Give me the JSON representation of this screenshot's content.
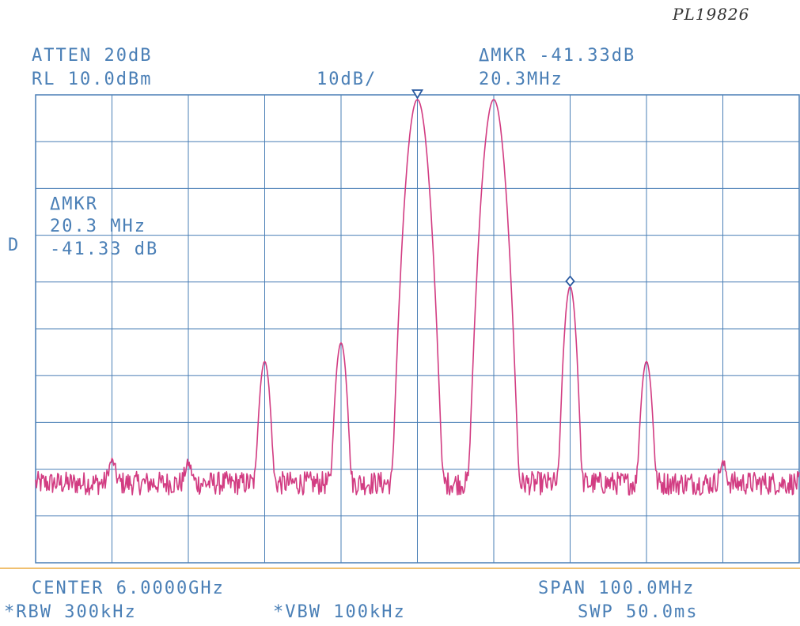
{
  "header": {
    "handwritten_id": "PL19826",
    "atten": "ATTEN 20dB",
    "ref_level": "RL 10.0dBm",
    "scale": "10dB/",
    "delta_marker": "ΔMKR -41.33dB",
    "delta_freq": "20.3MHz"
  },
  "annotation": {
    "line1": "ΔMKR",
    "line2": "20.3 MHz",
    "line3": "-41.33 dB",
    "d_label": "D"
  },
  "footer": {
    "center": "CENTER 6.0000GHz",
    "span": "SPAN 100.0MHz",
    "rbw": "*RBW 300kHz",
    "vbw": "*VBW 100kHz",
    "sweep": "SWP 50.0ms"
  },
  "colors": {
    "grid": "#4a7fb6",
    "trace": "#d23c82",
    "marker": "#2a5aa0"
  },
  "chart_data": {
    "type": "line",
    "xlabel": "",
    "ylabel": "",
    "x_unit": "MHz",
    "xlim": [
      5950,
      6050
    ],
    "ylim": [
      -90,
      10
    ],
    "grid": true,
    "noise_floor_dBm": -73,
    "peaks": [
      {
        "f": 5960,
        "level": -70
      },
      {
        "f": 5970,
        "level": -71
      },
      {
        "f": 5980,
        "level": -47
      },
      {
        "f": 5990,
        "level": -43
      },
      {
        "f": 6000,
        "level": 9
      },
      {
        "f": 6010,
        "level": 9
      },
      {
        "f": 6020,
        "level": -31
      },
      {
        "f": 6030,
        "level": -47
      },
      {
        "f": 6040,
        "level": -71
      }
    ],
    "markers": [
      {
        "type": "reference",
        "f": 6000,
        "level": 10
      },
      {
        "type": "delta",
        "f": 6020,
        "level": -31
      }
    ]
  }
}
